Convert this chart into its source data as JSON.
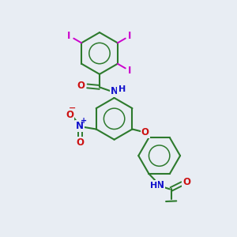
{
  "bg": "#e8edf3",
  "bc": "#2d7a2d",
  "ic": "#cc00cc",
  "oc": "#cc1111",
  "nc": "#1111cc",
  "figsize": [
    3.0,
    3.0
  ],
  "dpi": 100,
  "xlim": [
    0,
    10
  ],
  "ylim": [
    0,
    10
  ]
}
